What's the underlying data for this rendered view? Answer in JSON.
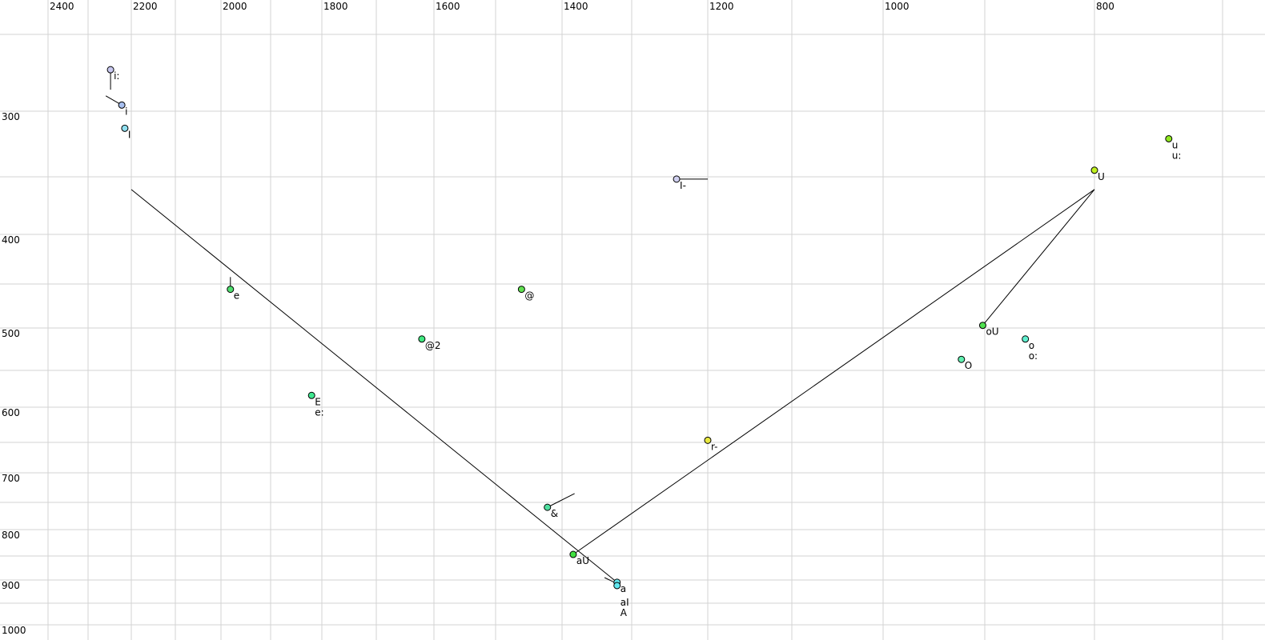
{
  "chart_data": {
    "type": "scatter",
    "title": "",
    "xlabel": "",
    "ylabel": "",
    "x_axis": {
      "reversed": true,
      "scale": "nonlinear (bark-like)",
      "range": [
        2400,
        700
      ],
      "tick_labels": [
        2400,
        2200,
        2000,
        1800,
        1600,
        1400,
        1200,
        1000,
        800
      ],
      "grid_step": 100
    },
    "y_axis": {
      "reversed": true,
      "scale": "nonlinear (bark-like)",
      "range": [
        250,
        1000
      ],
      "tick_labels": [
        300,
        400,
        500,
        600,
        700,
        800,
        900,
        1000
      ],
      "grid_step": 50
    },
    "grid": true,
    "points": [
      {
        "label": "i:",
        "f2": 2248,
        "f1": 273,
        "color": "#c8c8f0"
      },
      {
        "label": "i",
        "f2": 2222,
        "f1": 296,
        "color": "#a8c0f0"
      },
      {
        "label": "I",
        "f2": 2215,
        "f1": 313,
        "color": "#90e0f0"
      },
      {
        "label": "e",
        "f2": 1981,
        "f1": 456,
        "color": "#50e070"
      },
      {
        "label": "E",
        "f2": 1820,
        "f1": 584,
        "color": "#40e890",
        "extra_label": "e:"
      },
      {
        "label": "@",
        "f2": 1461,
        "f1": 456,
        "color": "#60e050"
      },
      {
        "label": "@2",
        "f2": 1621,
        "f1": 513,
        "color": "#40e880"
      },
      {
        "label": "&",
        "f2": 1422,
        "f1": 759,
        "color": "#50e0a0"
      },
      {
        "label": "aU",
        "f2": 1384,
        "f1": 847,
        "color": "#40e040"
      },
      {
        "label": "a",
        "f2": 1321,
        "f1": 905,
        "color": "#60e8f0"
      },
      {
        "label": "aI",
        "f2": 1321,
        "f1": 912,
        "color": "#60e8f0",
        "extra_label": "A"
      },
      {
        "label": "I-",
        "f2": 1241,
        "f1": 352,
        "color": "#d0d0f0"
      },
      {
        "label": "r-",
        "f2": 1200,
        "f1": 647,
        "color": "#e8e840"
      },
      {
        "label": "U",
        "f2": 800,
        "f1": 345,
        "color": "#c0f020"
      },
      {
        "label": "u",
        "f2": 742,
        "f1": 321,
        "color": "#90e820",
        "extra_label": "u:"
      },
      {
        "label": "oU",
        "f2": 902,
        "f1": 497,
        "color": "#50e050"
      },
      {
        "label": "o",
        "f2": 863,
        "f1": 513,
        "color": "#60f0d0",
        "extra_label": "o:"
      },
      {
        "label": "O",
        "f2": 923,
        "f1": 537,
        "color": "#60f0b0"
      }
    ],
    "trajectories": [
      {
        "from": [
          2248,
          273
        ],
        "to": [
          2248,
          286
        ]
      },
      {
        "from": [
          2259,
          290
        ],
        "to": [
          2222,
          296
        ]
      },
      {
        "from": [
          1981,
          443
        ],
        "to": [
          1981,
          456
        ]
      },
      {
        "from": [
          1321,
          905
        ],
        "to": [
          2200,
          361
        ]
      },
      {
        "from": [
          1339,
          895
        ],
        "to": [
          1321,
          908
        ]
      },
      {
        "from": [
          1384,
          847
        ],
        "to": [
          800,
          361
        ]
      },
      {
        "from": [
          902,
          497
        ],
        "to": [
          800,
          361
        ]
      },
      {
        "from": [
          1422,
          759
        ],
        "to": [
          1382,
          735
        ]
      },
      {
        "from": [
          1241,
          352
        ],
        "to": [
          1200,
          352
        ]
      },
      {
        "from": [
          1200,
          643
        ],
        "to": [
          1200,
          647
        ]
      }
    ]
  }
}
